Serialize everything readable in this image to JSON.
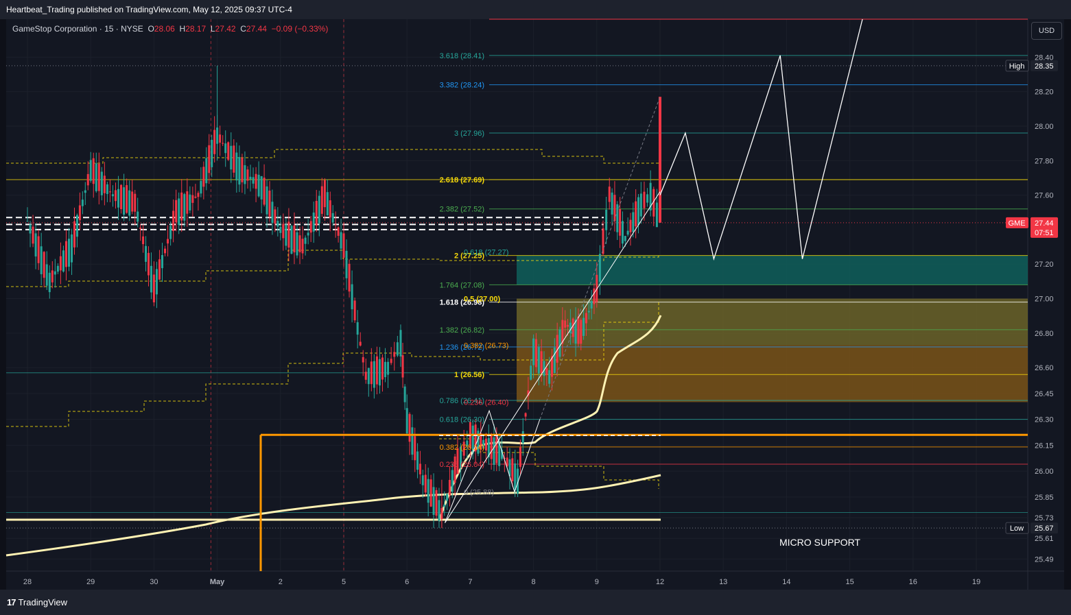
{
  "header": {
    "publisher_text": "Heartbeat_Trading published on TradingView.com, May 12, 2025 09:37 UTC-4"
  },
  "legend": {
    "symbol_text": "GameStop Corporation · 15 · NYSE",
    "open_label": "O",
    "open": "28.06",
    "high_label": "H",
    "high": "28.17",
    "low_label": "L",
    "low": "27.42",
    "close_label": "C",
    "close": "27.44",
    "change": "−0.09 (−0.33%)"
  },
  "currency_button": "USD",
  "footer": {
    "brand": "TradingView"
  },
  "colors": {
    "background": "#131722",
    "up": "#26a69a",
    "down": "#f23645",
    "fib_teal": "#26a69a",
    "fib_yellow": "#f5d90a",
    "fib_orange": "#ff9800",
    "support_orange": "#ff9800",
    "ma_cream": "#fff2b3"
  },
  "chart_data": {
    "type": "candlestick",
    "symbol": "GME",
    "interval": "15",
    "exchange": "NYSE",
    "ylim": [
      25.42,
      28.62
    ],
    "x_ticks": [
      "28",
      "29",
      "30",
      "May",
      "2",
      "5",
      "6",
      "7",
      "8",
      "9",
      "12",
      "13",
      "14",
      "15",
      "16",
      "19"
    ],
    "y_ticks": [
      "28.40",
      "28.20",
      "28.00",
      "27.80",
      "27.60",
      "27.20",
      "27.00",
      "26.80",
      "26.60",
      "26.45",
      "26.30",
      "26.15",
      "26.00",
      "25.85",
      "25.73",
      "25.61",
      "25.49"
    ],
    "price_markers": [
      {
        "label": "High",
        "value": "28.35",
        "color": "#131722",
        "text_color": "#ffffff",
        "price": 28.35
      },
      {
        "label": "GME",
        "value": "27.44",
        "extra": "07:51",
        "color": "#f23645",
        "text_color": "#ffffff",
        "price": 27.44
      },
      {
        "label": "Low",
        "value": "25.67",
        "color": "#131722",
        "text_color": "#ffffff",
        "price": 25.67
      }
    ],
    "session_path": [
      {
        "day": 0,
        "o": 27.5,
        "h": 27.62,
        "l": 27.35,
        "c": 27.45
      },
      {
        "day": 0.35,
        "o": 27.45,
        "h": 27.55,
        "l": 27.05,
        "c": 27.1
      },
      {
        "day": 0.7,
        "o": 27.1,
        "h": 27.4,
        "l": 27.0,
        "c": 27.3
      },
      {
        "day": 1.0,
        "o": 27.3,
        "h": 27.85,
        "l": 27.25,
        "c": 27.75
      },
      {
        "day": 1.35,
        "o": 27.75,
        "h": 27.8,
        "l": 27.5,
        "c": 27.6
      },
      {
        "day": 1.7,
        "o": 27.6,
        "h": 27.7,
        "l": 27.45,
        "c": 27.55
      },
      {
        "day": 2.0,
        "o": 27.55,
        "h": 27.6,
        "l": 26.9,
        "c": 27.05
      },
      {
        "day": 2.35,
        "o": 27.05,
        "h": 27.55,
        "l": 27.0,
        "c": 27.5
      },
      {
        "day": 2.7,
        "o": 27.5,
        "h": 27.7,
        "l": 27.4,
        "c": 27.6
      },
      {
        "day": 3.0,
        "o": 27.6,
        "h": 28.35,
        "l": 27.55,
        "c": 27.95
      },
      {
        "day": 3.35,
        "o": 27.95,
        "h": 28.05,
        "l": 27.7,
        "c": 27.75
      },
      {
        "day": 3.7,
        "o": 27.75,
        "h": 27.8,
        "l": 27.55,
        "c": 27.65
      },
      {
        "day": 4.0,
        "o": 27.65,
        "h": 27.7,
        "l": 27.3,
        "c": 27.4
      },
      {
        "day": 4.35,
        "o": 27.4,
        "h": 27.45,
        "l": 27.2,
        "c": 27.3
      },
      {
        "day": 4.7,
        "o": 27.3,
        "h": 27.7,
        "l": 27.25,
        "c": 27.6
      },
      {
        "day": 5.0,
        "o": 27.6,
        "h": 27.65,
        "l": 27.2,
        "c": 27.3
      },
      {
        "day": 5.35,
        "o": 27.3,
        "h": 27.35,
        "l": 26.45,
        "c": 26.55
      },
      {
        "day": 5.7,
        "o": 26.55,
        "h": 26.75,
        "l": 26.4,
        "c": 26.6
      },
      {
        "day": 5.9,
        "o": 26.6,
        "h": 26.85,
        "l": 26.5,
        "c": 26.75
      },
      {
        "day": 6.0,
        "o": 26.75,
        "h": 26.8,
        "l": 26.2,
        "c": 26.3
      },
      {
        "day": 6.25,
        "o": 26.3,
        "h": 26.35,
        "l": 25.85,
        "c": 25.95
      },
      {
        "day": 6.55,
        "o": 25.95,
        "h": 26.0,
        "l": 25.67,
        "c": 25.75
      },
      {
        "day": 6.8,
        "o": 25.75,
        "h": 26.1,
        "l": 25.7,
        "c": 26.05
      },
      {
        "day": 7.0,
        "o": 26.05,
        "h": 26.25,
        "l": 26.0,
        "c": 26.2
      },
      {
        "day": 7.25,
        "o": 26.2,
        "h": 26.3,
        "l": 26.1,
        "c": 26.15
      },
      {
        "day": 7.5,
        "o": 26.15,
        "h": 26.25,
        "l": 26.0,
        "c": 26.1
      },
      {
        "day": 7.75,
        "o": 26.1,
        "h": 26.15,
        "l": 25.85,
        "c": 25.95
      },
      {
        "day": 8.0,
        "o": 25.95,
        "h": 26.8,
        "l": 25.9,
        "c": 26.7
      },
      {
        "day": 8.25,
        "o": 26.7,
        "h": 26.75,
        "l": 26.45,
        "c": 26.55
      },
      {
        "day": 8.5,
        "o": 26.55,
        "h": 26.95,
        "l": 26.5,
        "c": 26.85
      },
      {
        "day": 8.75,
        "o": 26.85,
        "h": 26.9,
        "l": 26.7,
        "c": 26.8
      },
      {
        "day": 9.0,
        "o": 26.8,
        "h": 27.1,
        "l": 26.75,
        "c": 27.05
      },
      {
        "day": 9.2,
        "o": 27.05,
        "h": 27.7,
        "l": 27.0,
        "c": 27.6
      },
      {
        "day": 9.45,
        "o": 27.6,
        "h": 27.65,
        "l": 27.3,
        "c": 27.35
      },
      {
        "day": 9.7,
        "o": 27.35,
        "h": 27.6,
        "l": 27.3,
        "c": 27.55
      },
      {
        "day": 9.85,
        "o": 27.55,
        "h": 27.7,
        "l": 27.45,
        "c": 27.6
      },
      {
        "day": 10.0,
        "o": 27.6,
        "h": 28.17,
        "l": 27.42,
        "c": 27.44
      }
    ],
    "fib_labels_left": [
      {
        "text": "3.618 (28.41)",
        "color": "#26a69a",
        "price": 28.41
      },
      {
        "text": "3.382 (28.24)",
        "color": "#2196f3",
        "price": 28.24
      },
      {
        "text": "3 (27.96)",
        "color": "#26a69a",
        "price": 27.96
      },
      {
        "text": "2.618 (27.69)",
        "color": "#f5d90a",
        "price": 27.69
      },
      {
        "text": "2.382 (27.52)",
        "color": "#4caf50",
        "price": 27.52
      },
      {
        "text": "2 (27.25)",
        "color": "#f5d90a",
        "price": 27.25
      },
      {
        "text": "1.764 (27.08)",
        "color": "#4caf50",
        "price": 27.08
      },
      {
        "text": "1.618 (26.98)",
        "color": "#ffffff",
        "price": 26.98
      },
      {
        "text": "1.382 (26.82)",
        "color": "#4caf50",
        "price": 26.82
      },
      {
        "text": "1.236 (26.72)",
        "color": "#2196f3",
        "price": 26.72
      },
      {
        "text": "1 (26.56)",
        "color": "#f5d90a",
        "price": 26.56
      },
      {
        "text": "0.786 (26.41)",
        "color": "#26a69a",
        "price": 26.41
      },
      {
        "text": "0.618 (26.30)",
        "color": "#26a69a",
        "price": 26.3
      },
      {
        "text": "0.382 (26.14)",
        "color": "#ff9800",
        "price": 26.14
      },
      {
        "text": "0.236 (26.04)",
        "color": "#f23645",
        "price": 26.04
      }
    ],
    "fib_labels_inner": [
      {
        "text": "0.618 (27.27)",
        "color": "#26a69a",
        "price": 27.27
      },
      {
        "text": "0.5 (27.00)",
        "color": "#f5d90a",
        "price": 27.0
      },
      {
        "text": "0.382 (26.73)",
        "color": "#ff9800",
        "price": 26.73
      },
      {
        "text": "0.236 (26.40)",
        "color": "#f23645",
        "price": 26.4
      },
      {
        "text": "0 (25.88)",
        "color": "#787b86",
        "price": 25.88
      }
    ],
    "zones": [
      {
        "from": 27.25,
        "to": 27.08,
        "color": "#0f5f5a"
      },
      {
        "from": 27.0,
        "to": 26.73,
        "color": "#6b6328"
      },
      {
        "from": 26.73,
        "to": 26.4,
        "color": "#7a5418"
      }
    ],
    "projection": [
      [
        10.0,
        27.6
      ],
      [
        10.4,
        27.96
      ],
      [
        10.85,
        27.23
      ],
      [
        11.9,
        28.41
      ],
      [
        12.25,
        27.23
      ],
      [
        13.2,
        28.62
      ]
    ],
    "annotation": "MICRO SUPPORT",
    "support_level": 26.21
  }
}
